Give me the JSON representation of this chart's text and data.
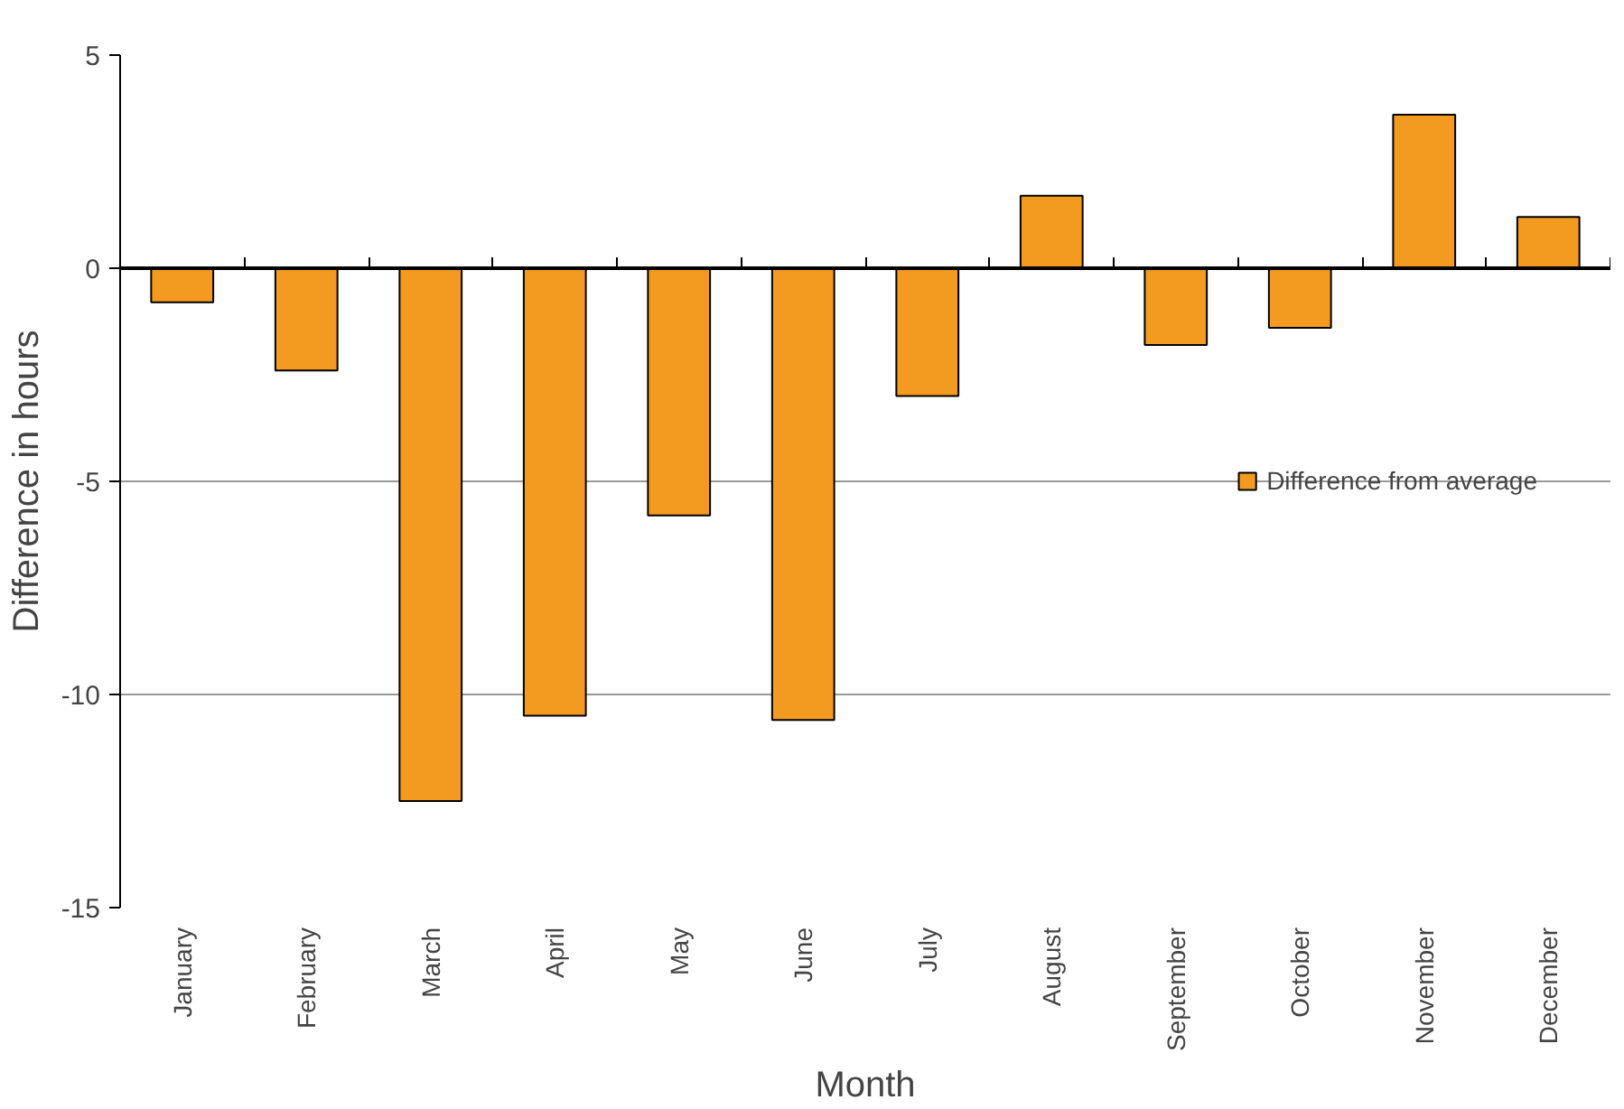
{
  "chart_data": {
    "type": "bar",
    "categories": [
      "January",
      "February",
      "March",
      "April",
      "May",
      "June",
      "July",
      "August",
      "September",
      "October",
      "November",
      "December"
    ],
    "series": [
      {
        "name": "Difference from average",
        "color": "#f39a21",
        "values": [
          -0.8,
          -2.4,
          -12.5,
          -10.5,
          -5.8,
          -10.6,
          -3.0,
          1.7,
          -1.8,
          -1.4,
          3.6,
          1.2
        ]
      }
    ],
    "xlabel": "Month",
    "ylabel": "Difference in hours",
    "ylim": [
      -15,
      5
    ],
    "yticks": [
      -15,
      -10,
      -5,
      0,
      5
    ],
    "grid": "y",
    "legend": "right"
  }
}
